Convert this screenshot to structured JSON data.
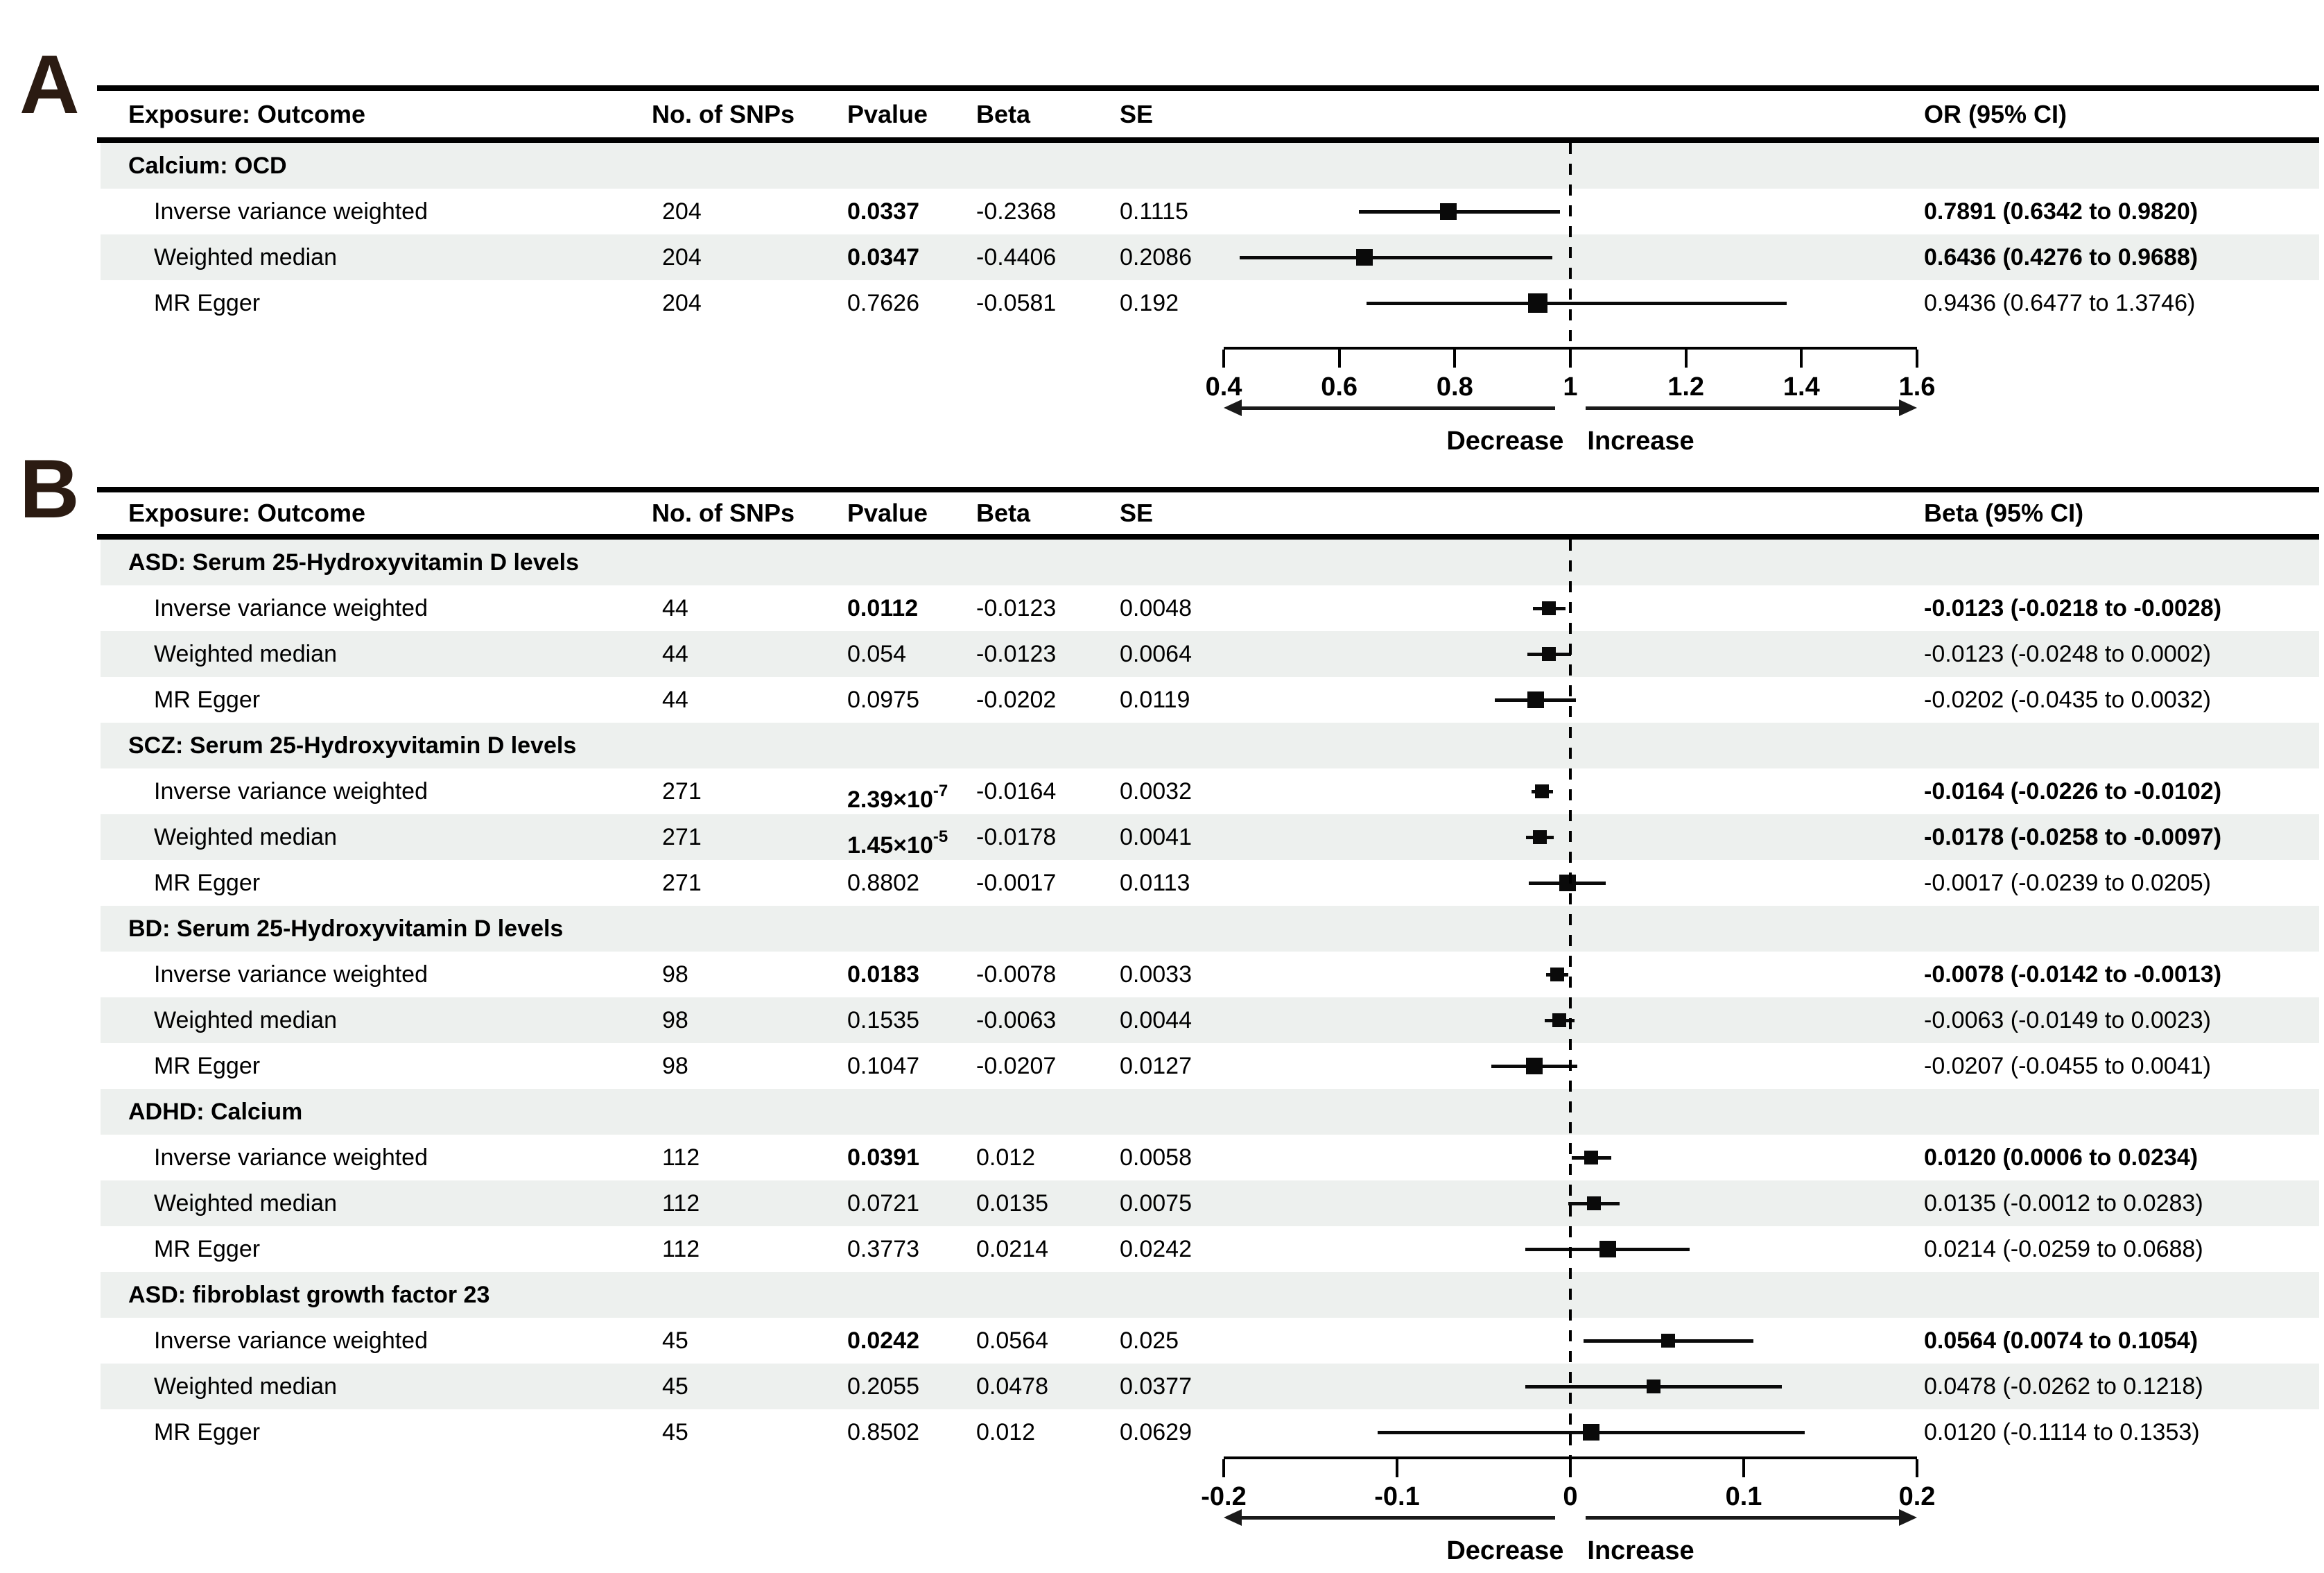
{
  "colors": {
    "stripe": "#edf0ee",
    "panel_label_color": "#2b1b12",
    "text": "#000000",
    "marker": "#0a0a0a"
  },
  "chart_data": [
    {
      "type": "scatter",
      "subtype": "forest-plot",
      "panel": "A",
      "columns": {
        "exposure_outcome": "Exposure: Outcome",
        "snps": "No. of SNPs",
        "pvalue": "Pvalue",
        "beta": "Beta",
        "se": "SE",
        "ci": "OR (95% CI)"
      },
      "axis": {
        "min": 0.4,
        "max": 1.6,
        "ref": 1,
        "ticks": [
          "0.4",
          "0.6",
          "0.8",
          "1",
          "1.2",
          "1.4",
          "1.6"
        ],
        "left_label": "Decrease",
        "right_label": "Increase"
      },
      "groups": [
        {
          "title": "Calcium: OCD",
          "rows": [
            {
              "method": "Inverse variance weighted",
              "snps": "204",
              "pvalue": "0.0337",
              "pvalue_sup": "",
              "pvalue_bold": true,
              "beta": "-0.2368",
              "se": "0.1115",
              "ci_text": "0.7891 (0.6342 to 0.9820)",
              "ci_bold": true,
              "est": 0.7891,
              "lo": 0.6342,
              "hi": 0.982
            },
            {
              "method": "Weighted median",
              "snps": "204",
              "pvalue": "0.0347",
              "pvalue_sup": "",
              "pvalue_bold": true,
              "beta": "-0.4406",
              "se": "0.2086",
              "ci_text": "0.6436 (0.4276 to 0.9688)",
              "ci_bold": true,
              "est": 0.6436,
              "lo": 0.4276,
              "hi": 0.9688
            },
            {
              "method": "MR Egger",
              "snps": "204",
              "pvalue": "0.7626",
              "pvalue_sup": "",
              "pvalue_bold": false,
              "beta": "-0.0581",
              "se": "0.192",
              "ci_text": "0.9436 (0.6477 to 1.3746)",
              "ci_bold": false,
              "est": 0.9436,
              "lo": 0.6477,
              "hi": 1.3746
            }
          ]
        }
      ]
    },
    {
      "type": "scatter",
      "subtype": "forest-plot",
      "panel": "B",
      "columns": {
        "exposure_outcome": "Exposure: Outcome",
        "snps": "No. of SNPs",
        "pvalue": "Pvalue",
        "beta": "Beta",
        "se": "SE",
        "ci": "Beta (95% CI)"
      },
      "axis": {
        "min": -0.2,
        "max": 0.2,
        "ref": 0,
        "ticks": [
          "-0.2",
          "-0.1",
          "0",
          "0.1",
          "0.2"
        ],
        "left_label": "Decrease",
        "right_label": "Increase"
      },
      "groups": [
        {
          "title": "ASD: Serum 25-Hydroxyvitamin D levels",
          "rows": [
            {
              "method": "Inverse variance weighted",
              "snps": "44",
              "pvalue": "0.0112",
              "pvalue_sup": "",
              "pvalue_bold": true,
              "beta": "-0.0123",
              "se": "0.0048",
              "ci_text": "-0.0123 (-0.0218 to -0.0028)",
              "ci_bold": true,
              "est": -0.0123,
              "lo": -0.0218,
              "hi": -0.0028
            },
            {
              "method": "Weighted median",
              "snps": "44",
              "pvalue": "0.054",
              "pvalue_sup": "",
              "pvalue_bold": false,
              "beta": "-0.0123",
              "se": "0.0064",
              "ci_text": "-0.0123 (-0.0248 to 0.0002)",
              "ci_bold": false,
              "est": -0.0123,
              "lo": -0.0248,
              "hi": 0.0002
            },
            {
              "method": "MR Egger",
              "snps": "44",
              "pvalue": "0.0975",
              "pvalue_sup": "",
              "pvalue_bold": false,
              "beta": "-0.0202",
              "se": "0.0119",
              "ci_text": "-0.0202 (-0.0435 to 0.0032)",
              "ci_bold": false,
              "est": -0.0202,
              "lo": -0.0435,
              "hi": 0.0032
            }
          ]
        },
        {
          "title": "SCZ: Serum 25-Hydroxyvitamin D levels",
          "rows": [
            {
              "method": "Inverse variance weighted",
              "snps": "271",
              "pvalue": "2.39×10",
              "pvalue_sup": "-7",
              "pvalue_bold": true,
              "beta": "-0.0164",
              "se": "0.0032",
              "ci_text": "-0.0164 (-0.0226 to -0.0102)",
              "ci_bold": true,
              "est": -0.0164,
              "lo": -0.0226,
              "hi": -0.0102
            },
            {
              "method": "Weighted median",
              "snps": "271",
              "pvalue": "1.45×10",
              "pvalue_sup": "-5",
              "pvalue_bold": true,
              "beta": "-0.0178",
              "se": "0.0041",
              "ci_text": "-0.0178 (-0.0258 to -0.0097)",
              "ci_bold": true,
              "est": -0.0178,
              "lo": -0.0258,
              "hi": -0.0097
            },
            {
              "method": "MR Egger",
              "snps": "271",
              "pvalue": "0.8802",
              "pvalue_sup": "",
              "pvalue_bold": false,
              "beta": "-0.0017",
              "se": "0.0113",
              "ci_text": "-0.0017 (-0.0239 to 0.0205)",
              "ci_bold": false,
              "est": -0.0017,
              "lo": -0.0239,
              "hi": 0.0205
            }
          ]
        },
        {
          "title": "BD: Serum 25-Hydroxyvitamin D levels",
          "rows": [
            {
              "method": "Inverse variance weighted",
              "snps": "98",
              "pvalue": "0.0183",
              "pvalue_sup": "",
              "pvalue_bold": true,
              "beta": "-0.0078",
              "se": "0.0033",
              "ci_text": "-0.0078 (-0.0142 to -0.0013)",
              "ci_bold": true,
              "est": -0.0078,
              "lo": -0.0142,
              "hi": -0.0013
            },
            {
              "method": "Weighted median",
              "snps": "98",
              "pvalue": "0.1535",
              "pvalue_sup": "",
              "pvalue_bold": false,
              "beta": "-0.0063",
              "se": "0.0044",
              "ci_text": "-0.0063 (-0.0149 to 0.0023)",
              "ci_bold": false,
              "est": -0.0063,
              "lo": -0.0149,
              "hi": 0.0023
            },
            {
              "method": "MR Egger",
              "snps": "98",
              "pvalue": "0.1047",
              "pvalue_sup": "",
              "pvalue_bold": false,
              "beta": "-0.0207",
              "se": "0.0127",
              "ci_text": "-0.0207 (-0.0455 to 0.0041)",
              "ci_bold": false,
              "est": -0.0207,
              "lo": -0.0455,
              "hi": 0.0041
            }
          ]
        },
        {
          "title": "ADHD: Calcium",
          "rows": [
            {
              "method": "Inverse variance weighted",
              "snps": "112",
              "pvalue": "0.0391",
              "pvalue_sup": "",
              "pvalue_bold": true,
              "beta": "0.012",
              "se": "0.0058",
              "ci_text": "0.0120 (0.0006 to 0.0234)",
              "ci_bold": true,
              "est": 0.012,
              "lo": 0.0006,
              "hi": 0.0234
            },
            {
              "method": "Weighted median",
              "snps": "112",
              "pvalue": "0.0721",
              "pvalue_sup": "",
              "pvalue_bold": false,
              "beta": "0.0135",
              "se": "0.0075",
              "ci_text": "0.0135 (-0.0012 to 0.0283)",
              "ci_bold": false,
              "est": 0.0135,
              "lo": -0.0012,
              "hi": 0.0283
            },
            {
              "method": "MR Egger",
              "snps": "112",
              "pvalue": "0.3773",
              "pvalue_sup": "",
              "pvalue_bold": false,
              "beta": "0.0214",
              "se": "0.0242",
              "ci_text": "0.0214 (-0.0259 to 0.0688)",
              "ci_bold": false,
              "est": 0.0214,
              "lo": -0.0259,
              "hi": 0.0688
            }
          ]
        },
        {
          "title": "ASD: fibroblast growth factor 23",
          "rows": [
            {
              "method": "Inverse variance weighted",
              "snps": "45",
              "pvalue": "0.0242",
              "pvalue_sup": "",
              "pvalue_bold": true,
              "beta": "0.0564",
              "se": "0.025",
              "ci_text": "0.0564 (0.0074 to 0.1054)",
              "ci_bold": true,
              "est": 0.0564,
              "lo": 0.0074,
              "hi": 0.1054
            },
            {
              "method": "Weighted median",
              "snps": "45",
              "pvalue": "0.2055",
              "pvalue_sup": "",
              "pvalue_bold": false,
              "beta": "0.0478",
              "se": "0.0377",
              "ci_text": "0.0478 (-0.0262 to 0.1218)",
              "ci_bold": false,
              "est": 0.0478,
              "lo": -0.0262,
              "hi": 0.1218
            },
            {
              "method": "MR Egger",
              "snps": "45",
              "pvalue": "0.8502",
              "pvalue_sup": "",
              "pvalue_bold": false,
              "beta": "0.012",
              "se": "0.0629",
              "ci_text": "0.0120 (-0.1114 to 0.1353)",
              "ci_bold": false,
              "est": 0.012,
              "lo": -0.1114,
              "hi": 0.1353
            }
          ]
        }
      ]
    }
  ]
}
